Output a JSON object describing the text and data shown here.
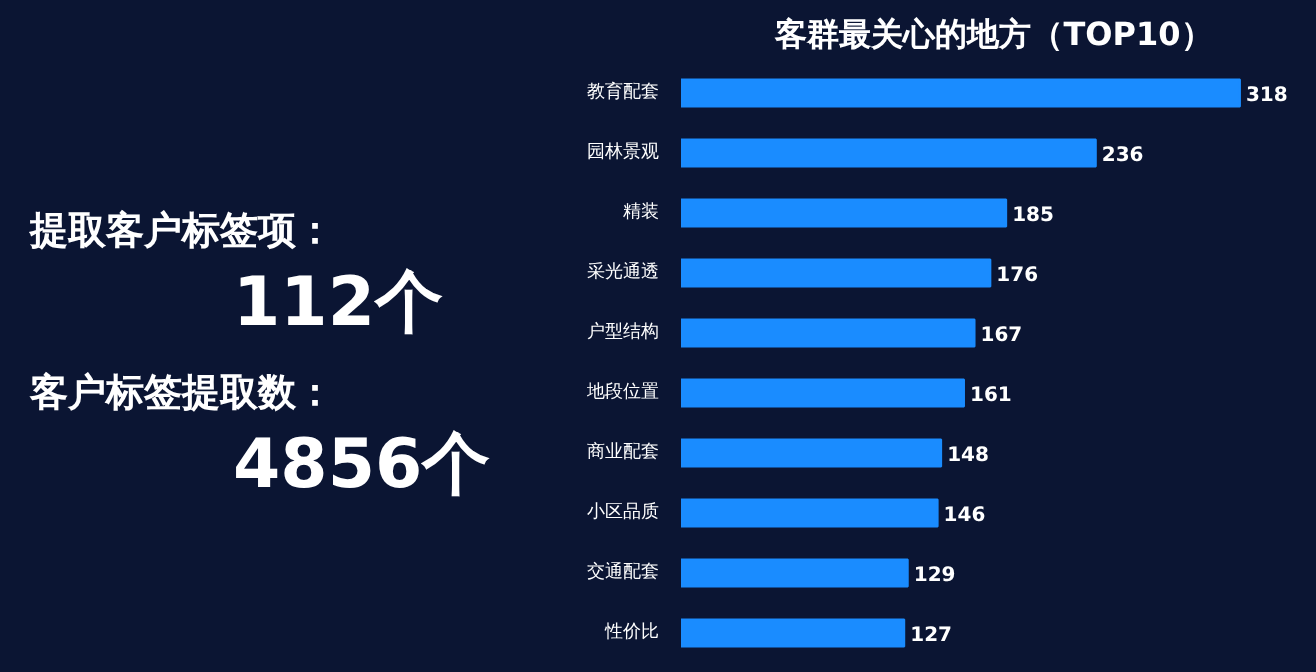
{
  "chart_data": [
    {
      "type": "other",
      "annotations": [
        "提取客户标签项：",
        "112个",
        "客户标签提取数：",
        "4856个"
      ]
    },
    {
      "type": "bar",
      "orientation": "horizontal",
      "title": "客群最关心的地方（TOP10）",
      "categories": [
        "教育配套",
        "园林景观",
        "精装",
        "采光通透",
        "户型结构",
        "地段位置",
        "商业配套",
        "小区品质",
        "交通配套",
        "性价比"
      ],
      "values": [
        318,
        236,
        185,
        176,
        167,
        161,
        148,
        146,
        129,
        127
      ],
      "color": "#1a8cff",
      "data_labels": true
    }
  ]
}
